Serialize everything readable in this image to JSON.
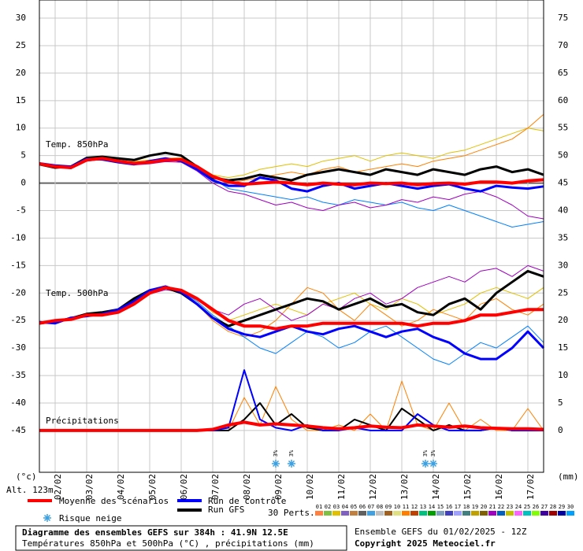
{
  "chart_data": {
    "type": "line",
    "xlim": [
      0,
      384
    ],
    "xticks": [
      {
        "value": 12,
        "label": "02/02"
      },
      {
        "value": 36,
        "label": "03/02"
      },
      {
        "value": 60,
        "label": "04/02"
      },
      {
        "value": 84,
        "label": "05/02"
      },
      {
        "value": 108,
        "label": "06/02"
      },
      {
        "value": 132,
        "label": "07/02"
      },
      {
        "value": 156,
        "label": "08/02"
      },
      {
        "value": 180,
        "label": "09/02"
      },
      {
        "value": 204,
        "label": "10/02"
      },
      {
        "value": 228,
        "label": "11/02"
      },
      {
        "value": 252,
        "label": "12/02"
      },
      {
        "value": 276,
        "label": "13/02"
      },
      {
        "value": 300,
        "label": "14/02"
      },
      {
        "value": 324,
        "label": "15/02"
      },
      {
        "value": 348,
        "label": "16/02"
      },
      {
        "value": 372,
        "label": "17/02"
      }
    ],
    "ylim": [
      -52.6,
      33.3
    ],
    "yticks": [
      -45,
      -40,
      -35,
      -30,
      -25,
      -20,
      -15,
      -10,
      -5,
      0,
      5,
      10,
      15,
      20,
      25,
      30
    ],
    "y2lim": [
      -7.6,
      78.3
    ],
    "y2ticks": [
      0,
      5,
      10,
      15,
      20,
      25,
      30,
      35,
      40,
      45,
      50,
      55,
      60,
      65,
      70,
      75
    ],
    "y_unit": "(°c)",
    "y2_unit": "(mm)",
    "altitude": "Alt. 123m",
    "grid": true,
    "x": [
      0,
      12,
      24,
      36,
      48,
      60,
      72,
      84,
      96,
      108,
      120,
      132,
      144,
      156,
      168,
      180,
      192,
      204,
      216,
      228,
      240,
      252,
      264,
      276,
      288,
      300,
      312,
      324,
      336,
      348,
      360,
      372,
      384
    ],
    "annotations": [
      {
        "text": "Temp. 850hPa"
      },
      {
        "text": "Temp. 500hPa"
      },
      {
        "text": "Précipitations"
      }
    ],
    "series": [
      {
        "color": "#e0c000",
        "width": 1,
        "values": [
          3.5,
          3,
          2.8,
          4.1,
          4.7,
          4.4,
          4,
          4.2,
          4.5,
          4.6,
          3.2,
          1.5,
          1,
          1.5,
          2.5,
          3,
          3.5,
          3,
          4,
          4.5,
          5,
          4,
          5,
          5.5,
          5,
          4.5,
          5.5,
          6,
          7,
          8,
          9,
          10,
          9.5
        ]
      },
      {
        "color": "#ff8000",
        "width": 1,
        "values": [
          3.5,
          3,
          2.9,
          4.3,
          4.5,
          4.2,
          3.8,
          4,
          4.1,
          4,
          2.8,
          1,
          0,
          0.5,
          1,
          1.5,
          2,
          1.5,
          2.5,
          3,
          2,
          2.5,
          3,
          3.5,
          3,
          4,
          4.5,
          5,
          6,
          7,
          8,
          10,
          12.5
        ]
      },
      {
        "color": "#0080ff",
        "width": 1,
        "values": [
          3.5,
          3.1,
          2.7,
          4,
          4.4,
          3.9,
          3.5,
          3.6,
          4,
          4.1,
          2.6,
          0.8,
          -1,
          -1.5,
          -2,
          -2.5,
          -3,
          -2.5,
          -3.5,
          -4,
          -3,
          -3.5,
          -4,
          -3.5,
          -4.5,
          -5,
          -4,
          -5,
          -6,
          -7,
          -8,
          -7.5,
          -7
        ]
      },
      {
        "color": "#a000c0",
        "width": 1,
        "values": [
          3.5,
          2.9,
          2.6,
          4,
          4.3,
          3.8,
          3.3,
          3.5,
          3.9,
          3.8,
          2.2,
          0,
          -1.5,
          -2,
          -3,
          -4,
          -3.5,
          -4.5,
          -5,
          -4,
          -3.5,
          -4.5,
          -4,
          -3,
          -3.5,
          -2.5,
          -3,
          -2,
          -1.5,
          -2.5,
          -4,
          -6,
          -6.5
        ]
      },
      {
        "color": "#000000",
        "width": 3,
        "values": [
          3.4,
          2.8,
          3,
          4.6,
          4.8,
          4.5,
          4.2,
          5,
          5.5,
          5,
          3,
          1,
          0.5,
          0.8,
          1.5,
          1,
          0.5,
          1.5,
          2,
          2.5,
          2,
          1.5,
          2.5,
          2,
          1.5,
          2.5,
          2,
          1.5,
          2.5,
          3,
          2,
          2.5,
          1.5
        ]
      },
      {
        "color": "#0000ff",
        "width": 3,
        "values": [
          3.6,
          3.2,
          3,
          4.4,
          4.3,
          3.8,
          3.4,
          4,
          4.5,
          4,
          2.5,
          0.5,
          -0.5,
          -0.5,
          1,
          0.5,
          -1,
          -1.5,
          -0.5,
          0,
          -1,
          -0.5,
          0,
          -0.5,
          -1,
          -0.5,
          -0.2,
          -1,
          -1.5,
          -0.5,
          -0.8,
          -1,
          -0.6
        ]
      },
      {
        "color": "#ff0000",
        "width": 4,
        "values": [
          3.5,
          3,
          2.8,
          4.2,
          4.5,
          4,
          3.6,
          3.8,
          4.2,
          4.3,
          3,
          1.2,
          0.2,
          -0.2,
          0,
          0.2,
          0,
          -0.3,
          0,
          -0.2,
          -0.3,
          0,
          -0.1,
          0,
          -0.3,
          -0.1,
          0,
          -0.2,
          0.2,
          0.2,
          0,
          0.4,
          0.6
        ]
      },
      {
        "color": "#e0c000",
        "width": 1,
        "values": [
          -25.6,
          -25,
          -24.6,
          -24,
          -23.6,
          -22.8,
          -21.2,
          -19.6,
          -18.9,
          -19.4,
          -21,
          -23.5,
          -25,
          -24,
          -23,
          -22,
          -23,
          -24,
          -22,
          -21,
          -20,
          -22,
          -23,
          -21,
          -22,
          -24,
          -23,
          -22,
          -20,
          -19,
          -20,
          -21,
          -19
        ]
      },
      {
        "color": "#ff8000",
        "width": 1,
        "values": [
          -25.5,
          -25,
          -24.5,
          -24,
          -23.8,
          -23,
          -21.5,
          -19.8,
          -19.2,
          -19.8,
          -22,
          -25,
          -27,
          -28,
          -27,
          -25,
          -22,
          -19,
          -20,
          -23,
          -25,
          -22,
          -24,
          -26,
          -25,
          -23,
          -24,
          -25,
          -22,
          -21,
          -23,
          -24,
          -22
        ]
      },
      {
        "color": "#0080ff",
        "width": 1,
        "values": [
          -25.5,
          -25.1,
          -24.7,
          -24.1,
          -24,
          -23.2,
          -21.8,
          -20,
          -19.2,
          -19.6,
          -21.5,
          -24,
          -26,
          -28,
          -30,
          -31,
          -29,
          -27,
          -28,
          -30,
          -29,
          -27,
          -26,
          -28,
          -30,
          -32,
          -33,
          -31,
          -29,
          -30,
          -28,
          -26,
          -29
        ]
      },
      {
        "color": "#a000c0",
        "width": 1,
        "values": [
          -25.4,
          -25.2,
          -24.6,
          -24,
          -23.9,
          -23.3,
          -21.9,
          -20.2,
          -19.4,
          -19.8,
          -21.2,
          -23,
          -24,
          -22,
          -21,
          -23,
          -25,
          -24,
          -22,
          -23,
          -21,
          -20,
          -22,
          -21,
          -19,
          -18,
          -17,
          -18,
          -16,
          -15.5,
          -17,
          -15,
          -16
        ]
      },
      {
        "color": "#000000",
        "width": 3,
        "values": [
          -25.5,
          -25.2,
          -24.6,
          -23.8,
          -23.5,
          -23,
          -21,
          -19.5,
          -19,
          -20,
          -22,
          -24.5,
          -26,
          -25,
          -24,
          -23,
          -22,
          -21,
          -21.5,
          -23,
          -22,
          -21,
          -22.5,
          -22,
          -23.5,
          -24,
          -22,
          -21,
          -23,
          -20,
          -18,
          -16,
          -17
        ]
      },
      {
        "color": "#0000ff",
        "width": 3,
        "values": [
          -25.3,
          -25.5,
          -24.5,
          -24.2,
          -23.8,
          -23,
          -21.5,
          -19.5,
          -18.8,
          -19.8,
          -22,
          -24.5,
          -26.5,
          -27.5,
          -28,
          -27,
          -26,
          -27,
          -27.5,
          -26.5,
          -26,
          -27,
          -28,
          -27,
          -26.5,
          -28,
          -29,
          -31,
          -32,
          -32,
          -30,
          -27,
          -30
        ]
      },
      {
        "color": "#ff0000",
        "width": 4,
        "values": [
          -25.5,
          -25,
          -24.8,
          -24,
          -24,
          -23.5,
          -22,
          -20,
          -19,
          -19.5,
          -21,
          -23,
          -25,
          -26,
          -26,
          -26.5,
          -26,
          -26,
          -25.5,
          -25.5,
          -25.5,
          -25.5,
          -25.5,
          -25.5,
          -26,
          -25.5,
          -25.5,
          -25,
          -24,
          -24,
          -23.5,
          -23,
          -23
        ]
      },
      {
        "color": "#ff8000",
        "width": 1,
        "axis": "y2",
        "values": [
          0,
          0,
          0,
          0,
          0,
          0,
          0,
          0,
          0,
          0,
          0,
          0,
          0,
          6,
          1,
          8,
          2,
          0,
          0,
          1,
          0,
          3,
          0,
          9,
          1,
          0,
          5,
          0,
          2,
          0,
          0,
          4,
          0
        ]
      },
      {
        "color": "#000000",
        "width": 2,
        "axis": "y2",
        "values": [
          0,
          0,
          0,
          0,
          0,
          0,
          0,
          0,
          0,
          0,
          0,
          0,
          0,
          2,
          5,
          1,
          3,
          0.5,
          0,
          0,
          2,
          1,
          0,
          4,
          2,
          0,
          1,
          0,
          0,
          0.5,
          0,
          0,
          0
        ]
      },
      {
        "color": "#0000ff",
        "width": 2,
        "axis": "y2",
        "values": [
          0,
          0,
          0,
          0,
          0,
          0,
          0,
          0,
          0,
          0,
          0,
          0,
          0.5,
          11,
          2,
          0.5,
          0,
          1,
          0,
          0,
          0.5,
          0,
          0,
          0,
          3,
          1,
          0,
          0,
          0,
          0.5,
          0,
          0,
          0
        ]
      },
      {
        "color": "#ff0000",
        "width": 4,
        "axis": "y2",
        "values": [
          0,
          0,
          0,
          0,
          0,
          0,
          0,
          0,
          0,
          0,
          0,
          0.2,
          1,
          1.5,
          1,
          1.2,
          1,
          0.8,
          0.5,
          0.3,
          0.5,
          0.8,
          0.6,
          0.5,
          1,
          0.8,
          0.6,
          0.8,
          0.5,
          0.4,
          0.3,
          0.3,
          0.2
        ]
      }
    ],
    "snow_risk": [
      {
        "x": 180,
        "label": "3%"
      },
      {
        "x": 192,
        "label": "3%"
      },
      {
        "x": 294,
        "label": "3%"
      },
      {
        "x": 300,
        "label": "3%"
      }
    ],
    "legend": [
      {
        "name": "Moyenne des scénarios",
        "color": "#ff0000"
      },
      {
        "name": "Run de contrôle",
        "color": "#0000ff"
      },
      {
        "name": "Run GFS",
        "color": "#000000"
      }
    ],
    "snow_legend": "Risque neige",
    "perts_title": "30 Perts.",
    "perts": [
      {
        "label": "01",
        "color": "#ff8040"
      },
      {
        "label": "02",
        "color": "#80c040"
      },
      {
        "label": "03",
        "color": "#e0c000"
      },
      {
        "label": "04",
        "color": "#8060c0"
      },
      {
        "label": "05",
        "color": "#c08040"
      },
      {
        "label": "06",
        "color": "#606060"
      },
      {
        "label": "07",
        "color": "#40a0e0"
      },
      {
        "label": "08",
        "color": "#c0c0c0"
      },
      {
        "label": "09",
        "color": "#a06020"
      },
      {
        "label": "10",
        "color": "#e0e080"
      },
      {
        "label": "11",
        "color": "#ff8000"
      },
      {
        "label": "12",
        "color": "#c04000"
      },
      {
        "label": "13",
        "color": "#00c080"
      },
      {
        "label": "14",
        "color": "#00a000"
      },
      {
        "label": "15",
        "color": "#80a0c0"
      },
      {
        "label": "16",
        "color": "#4040c0"
      },
      {
        "label": "17",
        "color": "#a0a0ff"
      },
      {
        "label": "18",
        "color": "#408080"
      },
      {
        "label": "19",
        "color": "#c0a000"
      },
      {
        "label": "20",
        "color": "#806000"
      },
      {
        "label": "21",
        "color": "#a000c0"
      },
      {
        "label": "22",
        "color": "#0060c0"
      },
      {
        "label": "23",
        "color": "#c0c000"
      },
      {
        "label": "24",
        "color": "#ff60ff"
      },
      {
        "label": "25",
        "color": "#00c0c0"
      },
      {
        "label": "26",
        "color": "#80ff00"
      },
      {
        "label": "27",
        "color": "#4000a0"
      },
      {
        "label": "28",
        "color": "#a00000"
      },
      {
        "label": "29",
        "color": "#0000a0"
      },
      {
        "label": "30",
        "color": "#00a0ff"
      }
    ],
    "footer": {
      "title": "Diagramme des ensembles GEFS sur 384h : 41.9N 12.5E",
      "subtitle": "Températures 850hPa et 500hPa (°C) , précipitations (mm)",
      "run": "Ensemble GEFS du 01/02/2025 - 12Z",
      "copyright": "Copyright 2025 Meteociel.fr"
    }
  }
}
